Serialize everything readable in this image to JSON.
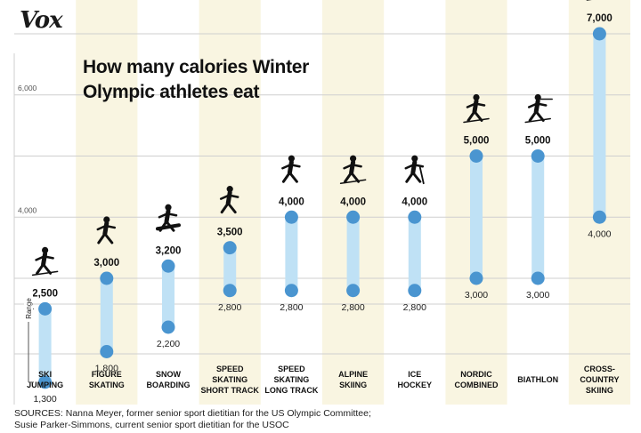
{
  "brand": "Vox",
  "title_line1": "How many calories Winter",
  "title_line2": "Olympic athletes eat",
  "sources_line1": "SOURCES: Nanna Meyer, former senior sport dietitian for the US Olympic Committee;",
  "sources_line2": "Susie Parker-Simmons, current senior sport dietitian for the USOC",
  "range_label": "Range",
  "colors": {
    "bar": "#bfe1f5",
    "dot": "#4a95d0",
    "stripe": "#f9f5e1",
    "grid": "#cfcfcf"
  },
  "chart_data": {
    "type": "range-bar",
    "title": "How many calories Winter Olympic athletes eat",
    "ylim": [
      1000,
      7500
    ],
    "y_ticks": [
      4000,
      6000
    ],
    "grid": true,
    "categories": [
      {
        "line1": "SKI",
        "line2": "JUMPING",
        "min": 1300,
        "max": 2500,
        "min_label": "1,300",
        "max_label": "2,500",
        "icon": "ski-jumper-icon"
      },
      {
        "line1": "FIGURE",
        "line2": "SKATING",
        "min": 1800,
        "max": 3000,
        "min_label": "1,800",
        "max_label": "3,000",
        "icon": "figure-skater-icon"
      },
      {
        "line1": "SNOW",
        "line2": "BOARDING",
        "min": 2200,
        "max": 3200,
        "min_label": "2,200",
        "max_label": "3,200",
        "icon": "snowboarder-icon"
      },
      {
        "line1": "SPEED",
        "line2": "SKATING",
        "line3": "SHORT TRACK",
        "min": 2800,
        "max": 3500,
        "min_label": "2,800",
        "max_label": "3,500",
        "icon": "short-track-skater-icon"
      },
      {
        "line1": "SPEED",
        "line2": "SKATING",
        "line3": "LONG TRACK",
        "min": 2800,
        "max": 4000,
        "min_label": "2,800",
        "max_label": "4,000",
        "icon": "long-track-skater-icon"
      },
      {
        "line1": "ALPINE",
        "line2": "SKIING",
        "min": 2800,
        "max": 4000,
        "min_label": "2,800",
        "max_label": "4,000",
        "icon": "alpine-skier-icon"
      },
      {
        "line1": "ICE",
        "line2": "HOCKEY",
        "min": 2800,
        "max": 4000,
        "min_label": "2,800",
        "max_label": "4,000",
        "icon": "hockey-player-icon"
      },
      {
        "line1": "NORDIC",
        "line2": "COMBINED",
        "min": 3000,
        "max": 5000,
        "min_label": "3,000",
        "max_label": "5,000",
        "icon": "nordic-skier-icon"
      },
      {
        "line1": "BIATHLON",
        "min": 3000,
        "max": 5000,
        "min_label": "3,000",
        "max_label": "5,000",
        "icon": "biathlete-icon"
      },
      {
        "line1": "CROSS-",
        "line2": "COUNTRY",
        "line3": "SKIING",
        "min": 4000,
        "max": 7000,
        "min_label": "4,000",
        "max_label": "7,000",
        "icon": "cross-country-skier-icon"
      }
    ]
  }
}
